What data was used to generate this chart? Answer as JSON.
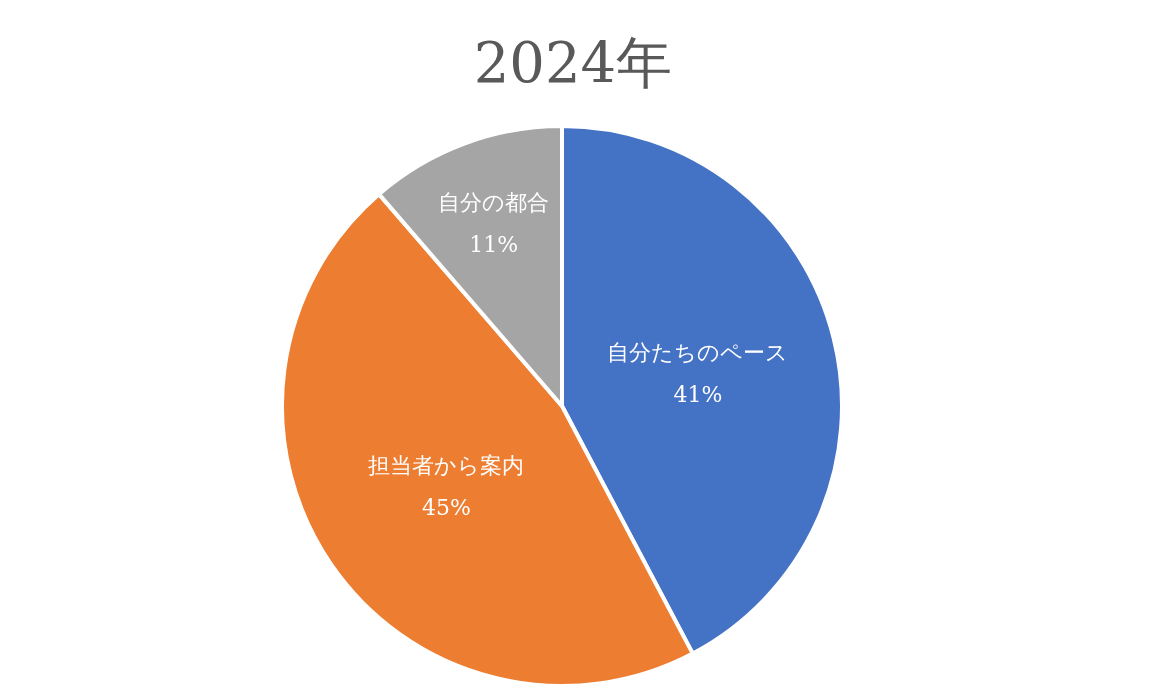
{
  "chart_data": {
    "type": "pie",
    "title": "2024年",
    "categories": [
      "自分たちのペース",
      "担当者から案内",
      "自分の都合"
    ],
    "values": [
      41,
      45,
      11
    ],
    "colors": [
      "#4472c4",
      "#ed7d31",
      "#a5a5a5"
    ],
    "value_labels": [
      "41%",
      "45%",
      "11%"
    ]
  }
}
